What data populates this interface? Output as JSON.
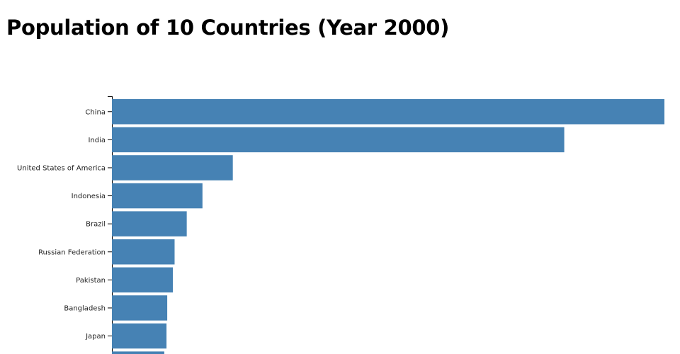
{
  "chart_data": {
    "type": "bar",
    "orientation": "horizontal",
    "title": "Population of 10 Countries (Year 2000)",
    "categories": [
      "China",
      "India",
      "United States of America",
      "Indonesia",
      "Brazil",
      "Russian Federation",
      "Pakistan",
      "Bangladesh",
      "Japan",
      ""
    ],
    "values": [
      1290.55,
      1056.58,
      282.4,
      211.5,
      174.8,
      146.4,
      142.3,
      129.2,
      127.5,
      122.3
    ],
    "xlim": [
      0,
      1290.55
    ],
    "grid": false,
    "bar_color": "#4682b4"
  }
}
